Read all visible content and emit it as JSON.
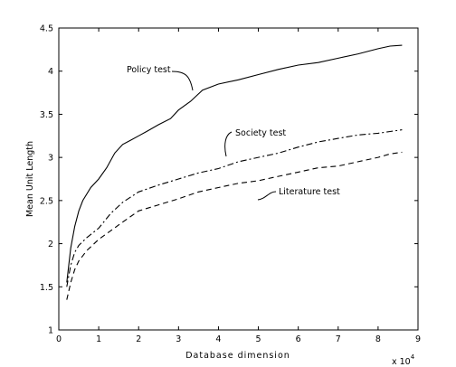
{
  "chart_data": {
    "type": "line",
    "title": "",
    "xlabel": "Database dimension",
    "ylabel": "Mean Unit Length",
    "x_multiplier_label": "x 10",
    "x_multiplier_exp": "4",
    "xlim": [
      0,
      9
    ],
    "ylim": [
      1,
      4.5
    ],
    "xticks": [
      "0",
      "1",
      "2",
      "3",
      "4",
      "5",
      "6",
      "7",
      "8",
      "9"
    ],
    "yticks": [
      "1",
      "1.5",
      "2",
      "2.5",
      "3",
      "3.5",
      "4",
      "4.5"
    ],
    "grid": false,
    "series": [
      {
        "name": "Policy test",
        "style": "solid",
        "x": [
          0.2,
          0.3,
          0.4,
          0.5,
          0.6,
          0.8,
          1.0,
          1.2,
          1.4,
          1.6,
          1.8,
          2.0,
          2.2,
          2.5,
          2.8,
          3.0,
          3.3,
          3.6,
          4.0,
          4.5,
          5.0,
          5.5,
          6.0,
          6.5,
          7.0,
          7.5,
          8.0,
          8.3,
          8.6
        ],
        "y": [
          1.55,
          1.95,
          2.2,
          2.38,
          2.5,
          2.65,
          2.75,
          2.88,
          3.05,
          3.15,
          3.2,
          3.25,
          3.3,
          3.38,
          3.45,
          3.55,
          3.65,
          3.78,
          3.85,
          3.9,
          3.96,
          4.02,
          4.07,
          4.1,
          4.15,
          4.2,
          4.26,
          4.29,
          4.3
        ]
      },
      {
        "name": "Society test",
        "style": "dashdot",
        "x": [
          0.2,
          0.3,
          0.4,
          0.5,
          0.7,
          1.0,
          1.3,
          1.6,
          2.0,
          2.5,
          3.0,
          3.5,
          4.0,
          4.5,
          5.0,
          5.5,
          6.0,
          6.5,
          7.0,
          7.5,
          8.0,
          8.3,
          8.6
        ],
        "y": [
          1.5,
          1.75,
          1.9,
          1.98,
          2.07,
          2.18,
          2.35,
          2.48,
          2.6,
          2.68,
          2.75,
          2.82,
          2.87,
          2.95,
          3.0,
          3.05,
          3.12,
          3.18,
          3.22,
          3.26,
          3.28,
          3.3,
          3.32
        ]
      },
      {
        "name": "Literature test",
        "style": "dashed",
        "x": [
          0.2,
          0.3,
          0.4,
          0.5,
          0.7,
          1.0,
          1.3,
          1.6,
          2.0,
          2.5,
          3.0,
          3.5,
          4.0,
          4.5,
          5.0,
          5.5,
          6.0,
          6.5,
          7.0,
          7.5,
          8.0,
          8.3,
          8.6
        ],
        "y": [
          1.35,
          1.55,
          1.7,
          1.8,
          1.92,
          2.05,
          2.15,
          2.25,
          2.38,
          2.45,
          2.52,
          2.6,
          2.65,
          2.7,
          2.73,
          2.78,
          2.83,
          2.88,
          2.9,
          2.95,
          3.0,
          3.04,
          3.06
        ]
      }
    ],
    "annotations": [
      {
        "text": "Policy test",
        "series": 0
      },
      {
        "text": "Society test",
        "series": 1
      },
      {
        "text": "Literature test",
        "series": 2
      }
    ]
  }
}
